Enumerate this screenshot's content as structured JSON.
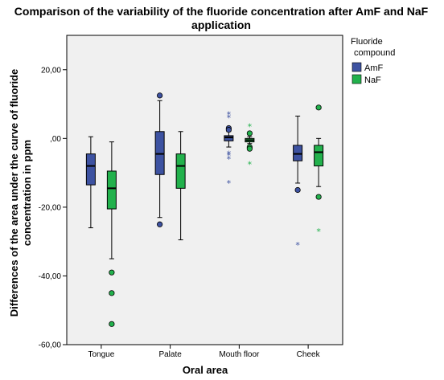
{
  "chart_data": {
    "type": "boxplot",
    "title": "Comparison of the variability of the fluoride concentration after AmF and NaF",
    "title_line2": "application",
    "xlabel": "Oral area",
    "ylabel_line1": "Differences of the area under the curve of fluoride",
    "ylabel_line2": "concentration in ppm",
    "ylim": [
      -60,
      30
    ],
    "yticks": [
      20,
      0,
      -20,
      -40,
      -60
    ],
    "ytick_labels": [
      "20,00",
      ",00",
      "-20,00",
      "-40,00",
      "-60,00"
    ],
    "categories": [
      "Tongue",
      "Palate",
      "Mouth floor",
      "Cheek"
    ],
    "legend": {
      "title_line1": "Fluoride",
      "title_line2": "compound",
      "placement": "right"
    },
    "series": [
      {
        "name": "AmF",
        "color": "#3d52a1",
        "boxes": [
          {
            "min": -26,
            "q1": -13.5,
            "median": -8,
            "q3": -4.5,
            "max": 0.5,
            "outliers": [],
            "extremes": []
          },
          {
            "min": -23,
            "q1": -10.5,
            "median": -4.5,
            "q3": 2,
            "max": 11,
            "outliers": [
              12.5,
              -25
            ],
            "extremes": []
          },
          {
            "min": -2.5,
            "q1": -0.7,
            "median": 0.3,
            "q3": 0.8,
            "max": 2,
            "outliers": [
              3,
              2.5
            ],
            "extremes": [
              7,
              6,
              -4.5,
              -5,
              -6,
              -13
            ]
          },
          {
            "min": -13,
            "q1": -6.5,
            "median": -4.5,
            "q3": -2,
            "max": 6.5,
            "outliers": [
              -15
            ],
            "extremes": [
              -31
            ]
          }
        ]
      },
      {
        "name": "NaF",
        "color": "#22b14c",
        "boxes": [
          {
            "min": -35,
            "q1": -20.5,
            "median": -14.5,
            "q3": -9.5,
            "max": -1,
            "outliers": [
              -39,
              -45,
              -54
            ],
            "extremes": []
          },
          {
            "min": -29.5,
            "q1": -14.5,
            "median": -8,
            "q3": -4.5,
            "max": 2,
            "outliers": [],
            "extremes": []
          },
          {
            "min": -1.5,
            "q1": -1,
            "median": -0.5,
            "q3": 0,
            "max": 0.5,
            "outliers": [
              1.5,
              -2.5,
              -3
            ],
            "extremes": [
              3.5,
              -7.5
            ]
          },
          {
            "min": -14,
            "q1": -8,
            "median": -4,
            "q3": -2,
            "max": 0,
            "outliers": [
              9,
              -17
            ],
            "extremes": [
              -27
            ]
          }
        ]
      }
    ]
  }
}
